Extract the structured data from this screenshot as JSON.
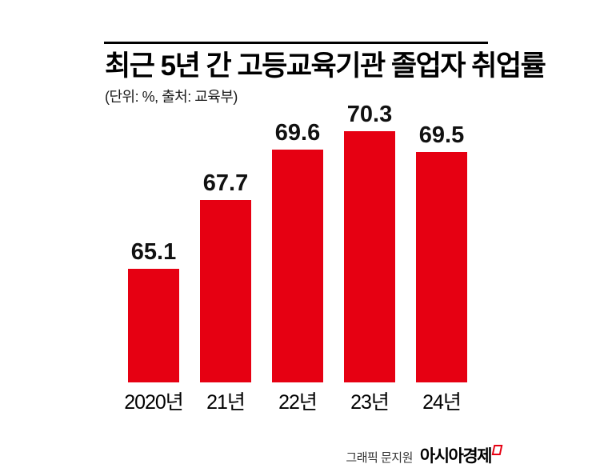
{
  "page": {
    "background": "#ffffff"
  },
  "header": {
    "title": "최근 5년 간 고등교육기관 졸업자 취업률",
    "subtitle": "(단위: %, 출처: 교육부)"
  },
  "chart_data": {
    "type": "bar",
    "title": "최근 5년 간 고등교육기관 졸업자 취업률",
    "unit": "%",
    "source": "교육부",
    "unit_source_note": "(단위: %, 출처: 교육부)",
    "categories": [
      "2020년",
      "21년",
      "22년",
      "23년",
      "24년"
    ],
    "values": [
      65.1,
      67.7,
      69.6,
      70.3,
      69.5
    ],
    "bar_color": "#e60012",
    "value_label_color": "#111111",
    "value_labels": "above bars",
    "grid": false,
    "axes_shown": false,
    "legend": "none",
    "ylim": [
      60.8,
      71.4
    ]
  },
  "footer": {
    "credit": "그래픽 문지원",
    "brand": "아시아경제",
    "brand_mark_color": "#e60012"
  }
}
